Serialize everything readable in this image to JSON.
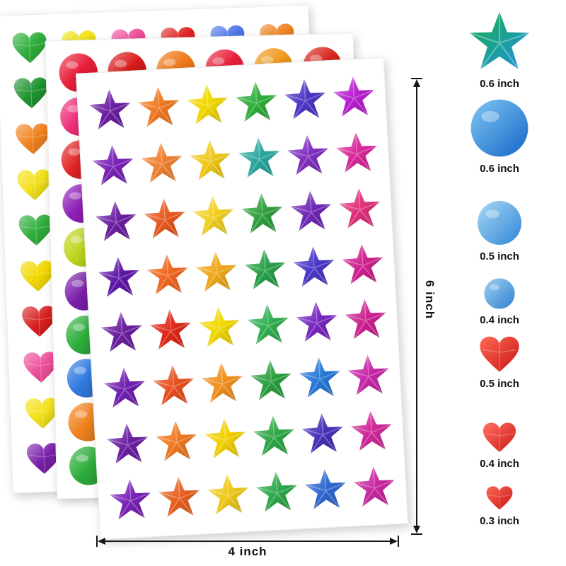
{
  "annotations": {
    "sheet_height_label": "6 inch",
    "sheet_width_label": "4 inch"
  },
  "size_chart": {
    "items": [
      {
        "shape": "star",
        "label": "0.6 inch",
        "color": "#17b24a",
        "color2": "#1e8fe0"
      },
      {
        "shape": "circle",
        "label": "0.6 inch",
        "color": "#7fc8f2",
        "color2": "#1565c8"
      },
      {
        "shape": "circle",
        "label": "0.5 inch",
        "color": "#a8d8f5",
        "color2": "#2f86d6"
      },
      {
        "shape": "circle",
        "label": "0.4 inch",
        "color": "#9fd0f0",
        "color2": "#2f80d0"
      },
      {
        "shape": "heart",
        "label": "0.5 inch",
        "color": "#ff6a55",
        "color2": "#c81414"
      },
      {
        "shape": "heart",
        "label": "0.4 inch",
        "color": "#ff7060",
        "color2": "#cc1818"
      },
      {
        "shape": "heart",
        "label": "0.3 inch",
        "color": "#ff6a58",
        "color2": "#c81212"
      }
    ]
  },
  "sheets": {
    "stars": {
      "name": "star sticker sheet",
      "rows": [
        [
          "#6a1fa0",
          "#f0781f",
          "#f2d800",
          "#2fae3c",
          "#4f35c8",
          "#b81fd0"
        ],
        [
          "#7a22b8",
          "#f08030",
          "#f0c818",
          "#2aa89e",
          "#8030c0",
          "#d8289a"
        ],
        [
          "#6a1fa0",
          "#e8581f",
          "#f2d020",
          "#2fa03c",
          "#7028b8",
          "#e0307a"
        ],
        [
          "#5f18a8",
          "#f0681f",
          "#f0a818",
          "#28a048",
          "#4838c8",
          "#d02090"
        ],
        [
          "#6a1fa0",
          "#e02818",
          "#f2d800",
          "#2fb050",
          "#7828c0",
          "#cc2290"
        ],
        [
          "#7020b0",
          "#e8501f",
          "#f0901f",
          "#2aa040",
          "#2878d8",
          "#c827a8"
        ],
        [
          "#6a1fa0",
          "#f0781f",
          "#f2d000",
          "#2fa848",
          "#4830b8",
          "#d0289a"
        ],
        [
          "#7a22b8",
          "#e8601f",
          "#f0c818",
          "#2ea84a",
          "#3068d0",
          "#c828a0"
        ]
      ]
    },
    "circles": {
      "name": "round sticker sheet",
      "rows": [
        [
          "#e81f39",
          "#d81c1c",
          "#f07818",
          "#e81f39",
          "#f0991c",
          "#d8261c"
        ],
        [
          "#ee2f7a",
          "#e02424",
          "#2fae3c",
          "#f2d817",
          "#8f1fb8",
          "#2f9e9e"
        ],
        [
          "#e02424",
          "#f0831f",
          "#bfd61f",
          "#2fae3c",
          "#ee2f7a",
          "#7a1fa8"
        ],
        [
          "#8f1fb8",
          "#2fae3c",
          "#e02424",
          "#f2d817",
          "#2f7ae0",
          "#f0831f"
        ],
        [
          "#bfd61f",
          "#ee2f7a",
          "#7a1fa8",
          "#e02424",
          "#2fae3c",
          "#f2d817"
        ],
        [
          "#7a1fa8",
          "#f0831f",
          "#2f7ae0",
          "#bfd61f",
          "#e02424",
          "#ee2f7a"
        ],
        [
          "#2fae3c",
          "#e02424",
          "#f2d817",
          "#8f1fb8",
          "#f0831f",
          "#2f9e9e"
        ],
        [
          "#2f7ae0",
          "#bfd61f",
          "#ee2f7a",
          "#2fae3c",
          "#e02424",
          "#f2d817"
        ],
        [
          "#f0831f",
          "#7a1fa8",
          "#2fae3c",
          "#e02424",
          "#f2d817",
          "#ee2f7a"
        ],
        [
          "#2fae3c",
          "#e02424",
          "#f0831f",
          "#2f7ae0",
          "#bfd61f",
          "#8f1fb8"
        ]
      ]
    },
    "hearts": {
      "name": "heart sticker sheet",
      "rows": [
        [
          "#2fae3c",
          "#f2e117",
          "#ee4f9a",
          "#e02424",
          "#4f77e8",
          "#f0831f"
        ],
        [
          "#1f9431",
          "#e8c715",
          "#ef6a24",
          "#2fae3c",
          "#b81fd0",
          "#e02424"
        ],
        [
          "#f0831f",
          "#2fae3c",
          "#f2e117",
          "#ee4f9a",
          "#1f9431",
          "#4f77e8"
        ],
        [
          "#f2e117",
          "#e02424",
          "#b81fd0",
          "#2fae3c",
          "#f0831f",
          "#ee4f9a"
        ],
        [
          "#2fae3c",
          "#4f77e8",
          "#e02424",
          "#f2e117",
          "#ee4f9a",
          "#1f9431"
        ],
        [
          "#f2d800",
          "#ee4f9a",
          "#2fae3c",
          "#f0831f",
          "#e02424",
          "#b81fd0"
        ],
        [
          "#d81f1f",
          "#f2e117",
          "#1f9431",
          "#4f77e8",
          "#f0831f",
          "#2fae3c"
        ],
        [
          "#ee4f9a",
          "#2fae3c",
          "#f0831f",
          "#e02424",
          "#f2e117",
          "#4f77e8"
        ],
        [
          "#f2e117",
          "#b81fd0",
          "#e02424",
          "#1f9431",
          "#ee4f9a",
          "#f0831f"
        ],
        [
          "#7a1fa8",
          "#e02424",
          "#f2e117",
          "#2fae3c",
          "#4f77e8",
          "#ee4f9a"
        ]
      ]
    }
  }
}
